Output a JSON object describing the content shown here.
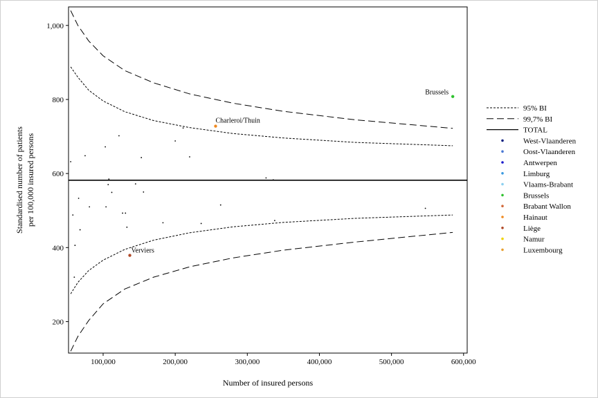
{
  "chart_data": {
    "type": "scatter",
    "xlabel": "Number of insured persons",
    "ylabel": [
      "Standardised number of patients",
      "per 100,000 insured persons"
    ],
    "xlim": [
      52000,
      605000
    ],
    "ylim": [
      115,
      1050
    ],
    "x_ticks": [
      100000,
      200000,
      300000,
      400000,
      500000,
      600000
    ],
    "x_tick_labels": [
      "100,000",
      "200,000",
      "300,000",
      "400,000",
      "500,000",
      "600,000"
    ],
    "y_ticks": [
      200,
      400,
      600,
      800,
      1000
    ],
    "y_tick_labels": [
      "200",
      "400",
      "600",
      "800",
      "1,000"
    ],
    "grid": false,
    "legend_position": "right",
    "total": 582,
    "reference_lines": [
      {
        "label": "95% BI",
        "style": "dotted",
        "upper": [
          [
            55000,
            888
          ],
          [
            65000,
            860
          ],
          [
            80000,
            825
          ],
          [
            100000,
            796
          ],
          [
            130000,
            767
          ],
          [
            170000,
            743
          ],
          [
            220000,
            724
          ],
          [
            280000,
            708
          ],
          [
            350000,
            696
          ],
          [
            450000,
            684
          ],
          [
            585000,
            675
          ]
        ],
        "lower": [
          [
            55000,
            275
          ],
          [
            65000,
            306
          ],
          [
            80000,
            338
          ],
          [
            100000,
            366
          ],
          [
            130000,
            395
          ],
          [
            170000,
            420
          ],
          [
            220000,
            440
          ],
          [
            280000,
            456
          ],
          [
            350000,
            468
          ],
          [
            450000,
            479
          ],
          [
            585000,
            488
          ]
        ]
      },
      {
        "label": "99,7% BI",
        "style": "dashed",
        "upper": [
          [
            55000,
            1040
          ],
          [
            65000,
            1000
          ],
          [
            80000,
            958
          ],
          [
            100000,
            918
          ],
          [
            130000,
            878
          ],
          [
            170000,
            845
          ],
          [
            220000,
            815
          ],
          [
            280000,
            790
          ],
          [
            350000,
            768
          ],
          [
            450000,
            745
          ],
          [
            585000,
            722
          ]
        ],
        "lower": [
          [
            55000,
            120
          ],
          [
            65000,
            160
          ],
          [
            80000,
            203
          ],
          [
            100000,
            248
          ],
          [
            130000,
            288
          ],
          [
            170000,
            320
          ],
          [
            220000,
            348
          ],
          [
            280000,
            372
          ],
          [
            350000,
            393
          ],
          [
            450000,
            415
          ],
          [
            585000,
            441
          ]
        ]
      }
    ],
    "series": [
      {
        "name": "West-Vlaanderen",
        "color": "#0d1f80",
        "values": []
      },
      {
        "name": "Oost-Vlaanderen",
        "color": "#4a78d4",
        "values": []
      },
      {
        "name": "Antwerpen",
        "color": "#1a1acc",
        "values": []
      },
      {
        "name": "Limburg",
        "color": "#3a9ae0",
        "values": []
      },
      {
        "name": "Vlaams-Brabant",
        "color": "#8cd0f0",
        "values": []
      },
      {
        "name": "Brussels",
        "color": "#2ec22e",
        "values": [
          [
            585000,
            808
          ]
        ]
      },
      {
        "name": "Brabant Wallon",
        "color": "#d26a3c",
        "values": []
      },
      {
        "name": "Hainaut",
        "color": "#f08a20",
        "values": [
          [
            256000,
            728
          ]
        ]
      },
      {
        "name": "Liège",
        "color": "#b04a28",
        "values": [
          [
            137000,
            379
          ]
        ]
      },
      {
        "name": "Namur",
        "color": "#f0d400",
        "values": []
      },
      {
        "name": "Luxembourg",
        "color": "#e8a030",
        "values": []
      }
    ],
    "other_points": [
      [
        55000,
        632
      ],
      [
        58000,
        488
      ],
      [
        60000,
        320
      ],
      [
        61000,
        406
      ],
      [
        66000,
        533
      ],
      [
        68000,
        448
      ],
      [
        75000,
        648
      ],
      [
        81000,
        510
      ],
      [
        103000,
        672
      ],
      [
        104000,
        510
      ],
      [
        107000,
        570
      ],
      [
        108000,
        585
      ],
      [
        112000,
        549
      ],
      [
        122000,
        702
      ],
      [
        127000,
        493
      ],
      [
        131000,
        493
      ],
      [
        133000,
        455
      ],
      [
        145000,
        572
      ],
      [
        153000,
        643
      ],
      [
        156000,
        550
      ],
      [
        183000,
        467
      ],
      [
        200000,
        688
      ],
      [
        211000,
        723
      ],
      [
        220000,
        645
      ],
      [
        236000,
        465
      ],
      [
        263000,
        515
      ],
      [
        326000,
        588
      ],
      [
        336000,
        583
      ],
      [
        338000,
        473
      ],
      [
        547000,
        506
      ]
    ],
    "annotations": [
      {
        "text": "Brussels",
        "x": 585000,
        "y": 808
      },
      {
        "text": "Charleroi/Thuin",
        "x": 256000,
        "y": 728
      },
      {
        "text": "Verviers",
        "x": 137000,
        "y": 379
      }
    ],
    "legend": [
      "95% BI",
      "99,7% BI",
      "TOTAL",
      "West-Vlaanderen",
      "Oost-Vlaanderen",
      "Antwerpen",
      "Limburg",
      "Vlaams-Brabant",
      "Brussels",
      "Brabant Wallon",
      "Hainaut",
      "Liège",
      "Namur",
      "Luxembourg"
    ]
  }
}
